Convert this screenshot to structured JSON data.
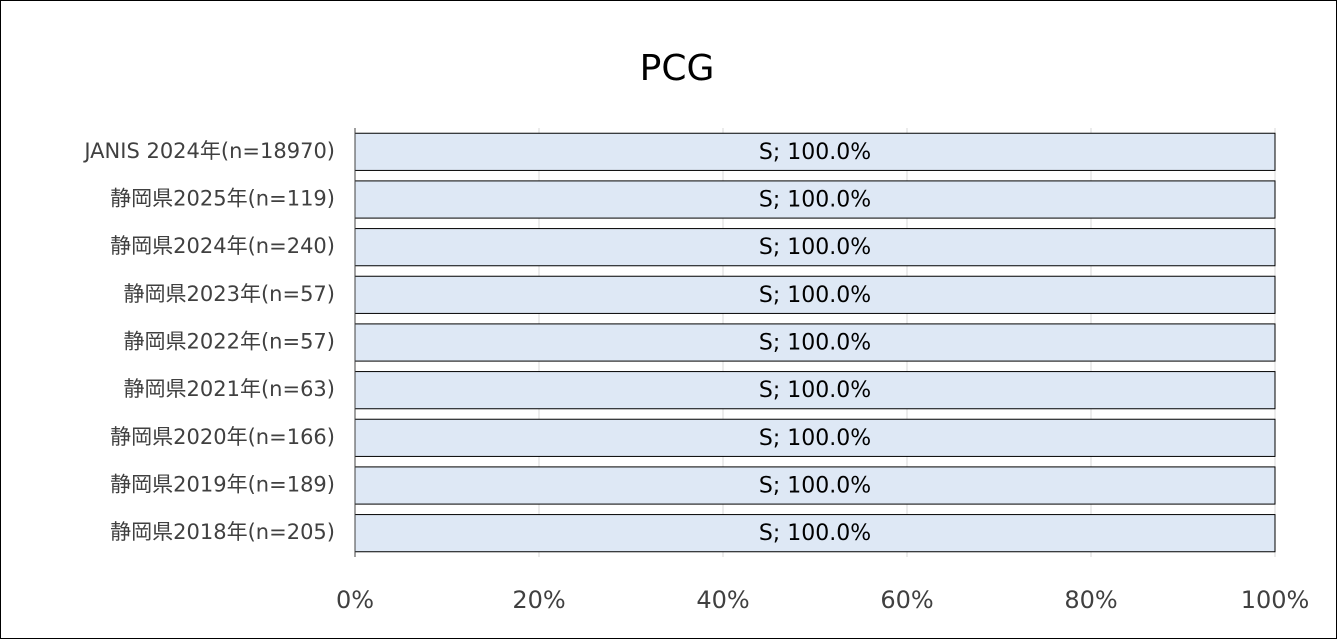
{
  "chart_data": {
    "type": "hbar",
    "title": "PCG",
    "categories": [
      "JANIS 2024年(n=18970)",
      "静岡県2025年(n=119)",
      "静岡県2024年(n=240)",
      "静岡県2023年(n=57)",
      "静岡県2022年(n=57)",
      "静岡県2021年(n=63)",
      "静岡県2020年(n=166)",
      "静岡県2019年(n=189)",
      "静岡県2018年(n=205)"
    ],
    "values": [
      100,
      100,
      100,
      100,
      100,
      100,
      100,
      100,
      100
    ],
    "value_labels": [
      "S; 100.0%",
      "S; 100.0%",
      "S; 100.0%",
      "S; 100.0%",
      "S; 100.0%",
      "S; 100.0%",
      "S; 100.0%",
      "S; 100.0%",
      "S; 100.0%"
    ],
    "color": "#dee8f5",
    "xlim": [
      0,
      100
    ],
    "xticks": [
      {
        "value": 0,
        "label": "0%"
      },
      {
        "value": 20,
        "label": "20%"
      },
      {
        "value": 40,
        "label": "40%"
      },
      {
        "value": 60,
        "label": "60%"
      },
      {
        "value": 80,
        "label": "80%"
      },
      {
        "value": 100,
        "label": "100%"
      }
    ],
    "grid": true
  }
}
